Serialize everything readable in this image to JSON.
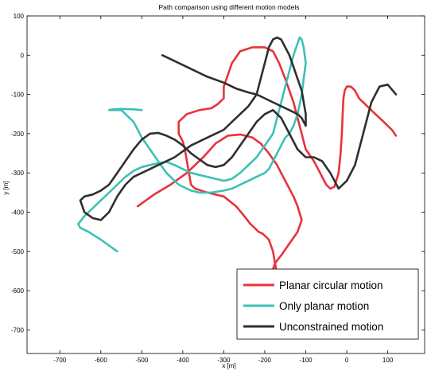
{
  "chart_data": {
    "type": "line",
    "title": "Path comparison using different motion models",
    "xlabel": "x [m]",
    "ylabel": "y [m]",
    "xlim": [
      -780,
      190
    ],
    "ylim": [
      -760,
      100
    ],
    "xticks": [
      -700,
      -600,
      -500,
      -400,
      -300,
      -200,
      -100,
      0,
      100
    ],
    "yticks": [
      100,
      0,
      -100,
      -200,
      -300,
      -400,
      -500,
      -600,
      -700
    ],
    "grid": false,
    "legend_position": "bottom-right",
    "series": [
      {
        "name": "Planar circular motion",
        "color": "#e8323c",
        "x": [
          -510,
          -470,
          -430,
          -390,
          -350,
          -320,
          -290,
          -260,
          -230,
          -210,
          -190,
          -170,
          -150,
          -130,
          -120,
          -110,
          -120,
          -140,
          -160,
          -175,
          -185,
          -190,
          -180,
          -165,
          -150,
          -140,
          -140,
          -150,
          -160,
          -170,
          -180,
          -190,
          -205,
          -215,
          -225,
          -235,
          -250,
          -270,
          -300,
          -340,
          -370,
          -380,
          -385,
          -390,
          -395,
          -400,
          -410,
          -410,
          -390,
          -360,
          -330,
          -315,
          -300,
          -300,
          -290,
          -280,
          -260,
          -230,
          -200,
          -180,
          -165,
          -150,
          -140,
          -130,
          -125,
          -120,
          -115,
          -110,
          -105,
          -100,
          -90,
          -80,
          -70,
          -60,
          -50,
          -40,
          -30,
          -20,
          -15,
          -12,
          -10,
          -8,
          -5,
          0,
          10,
          20,
          30,
          50,
          70,
          90,
          110,
          120
        ],
        "y": [
          -385,
          -355,
          -330,
          -300,
          -260,
          -225,
          -205,
          -202,
          -210,
          -225,
          -250,
          -280,
          -320,
          -360,
          -385,
          -420,
          -450,
          -480,
          -510,
          -530,
          -560,
          -600,
          -650,
          -680,
          -690,
          -690,
          -680,
          -660,
          -620,
          -560,
          -500,
          -470,
          -455,
          -450,
          -440,
          -430,
          -410,
          -385,
          -360,
          -350,
          -340,
          -330,
          -300,
          -270,
          -240,
          -220,
          -200,
          -170,
          -150,
          -140,
          -135,
          -125,
          -110,
          -80,
          -50,
          -20,
          10,
          20,
          20,
          10,
          -20,
          -60,
          -90,
          -120,
          -140,
          -160,
          -180,
          -200,
          -220,
          -240,
          -255,
          -270,
          -290,
          -310,
          -330,
          -340,
          -335,
          -300,
          -250,
          -200,
          -150,
          -110,
          -90,
          -80,
          -80,
          -90,
          -110,
          -130,
          -150,
          -170,
          -190,
          -205
        ]
      },
      {
        "name": "Only planar motion",
        "color": "#3ec0b6",
        "x": [
          -560,
          -600,
          -630,
          -650,
          -655,
          -640,
          -620,
          -600,
          -580,
          -560,
          -540,
          -520,
          -500,
          -480,
          -460,
          -440,
          -420,
          -400,
          -380,
          -360,
          -340,
          -320,
          -300,
          -280,
          -260,
          -240,
          -220,
          -200,
          -180,
          -170,
          -160,
          -150,
          -140,
          -130,
          -120,
          -115,
          -110,
          -105,
          -100,
          -105,
          -110,
          -120,
          -130,
          -140,
          -150,
          -155,
          -160,
          -170,
          -180,
          -190,
          -200,
          -220,
          -240,
          -260,
          -280,
          -300,
          -330,
          -360,
          -380,
          -390,
          -400,
          -410,
          -420,
          -440,
          -460,
          -480,
          -500,
          -510,
          -520,
          -550,
          -570,
          -580,
          -570,
          -550,
          -520,
          -500
        ],
        "y": [
          -500,
          -470,
          -450,
          -440,
          -430,
          -410,
          -390,
          -370,
          -350,
          -330,
          -310,
          -295,
          -285,
          -280,
          -275,
          -272,
          -280,
          -290,
          -300,
          -305,
          -310,
          -315,
          -320,
          -315,
          -300,
          -280,
          -260,
          -230,
          -200,
          -160,
          -120,
          -80,
          -40,
          0,
          30,
          45,
          40,
          20,
          -20,
          -60,
          -100,
          -150,
          -180,
          -200,
          -210,
          -220,
          -230,
          -250,
          -270,
          -290,
          -300,
          -310,
          -320,
          -330,
          -340,
          -345,
          -350,
          -350,
          -345,
          -340,
          -335,
          -330,
          -320,
          -300,
          -270,
          -240,
          -210,
          -190,
          -170,
          -140,
          -140,
          -140,
          -138,
          -137,
          -138,
          -140
        ]
      },
      {
        "name": "Unconstrained motion",
        "color": "#2f2f2f",
        "x": [
          -450,
          -420,
          -380,
          -340,
          -300,
          -270,
          -240,
          -220,
          -200,
          -180,
          -160,
          -140,
          -120,
          -110,
          -105,
          -100,
          -100,
          -105,
          -110,
          -120,
          -130,
          -140,
          -150,
          -160,
          -170,
          -180,
          -190,
          -200,
          -210,
          -220,
          -240,
          -260,
          -280,
          -300,
          -320,
          -340,
          -360,
          -380,
          -400,
          -420,
          -440,
          -460,
          -480,
          -500,
          -520,
          -540,
          -560,
          -580,
          -600,
          -620,
          -640,
          -650,
          -640,
          -620,
          -600,
          -580,
          -560,
          -540,
          -520,
          -500,
          -480,
          -460,
          -440,
          -420,
          -400,
          -380,
          -360,
          -340,
          -320,
          -300,
          -280,
          -260,
          -240,
          -220,
          -200,
          -180,
          -160,
          -140,
          -120,
          -100,
          -80,
          -60,
          -40,
          -20,
          0,
          20,
          40,
          60,
          80,
          100,
          120
        ],
        "y": [
          0,
          -15,
          -35,
          -55,
          -70,
          -85,
          -95,
          -100,
          -110,
          -120,
          -130,
          -140,
          -150,
          -160,
          -170,
          -180,
          -150,
          -120,
          -90,
          -60,
          -30,
          0,
          20,
          40,
          45,
          40,
          20,
          -20,
          -60,
          -100,
          -130,
          -150,
          -170,
          -190,
          -200,
          -210,
          -220,
          -230,
          -245,
          -260,
          -270,
          -280,
          -290,
          -300,
          -310,
          -330,
          -360,
          -400,
          -420,
          -415,
          -400,
          -370,
          -360,
          -355,
          -345,
          -330,
          -300,
          -270,
          -240,
          -215,
          -200,
          -198,
          -205,
          -215,
          -230,
          -250,
          -265,
          -280,
          -285,
          -280,
          -260,
          -230,
          -200,
          -170,
          -150,
          -140,
          -160,
          -200,
          -240,
          -260,
          -260,
          -270,
          -300,
          -340,
          -320,
          -280,
          -200,
          -120,
          -80,
          -75,
          -100
        ]
      }
    ]
  }
}
